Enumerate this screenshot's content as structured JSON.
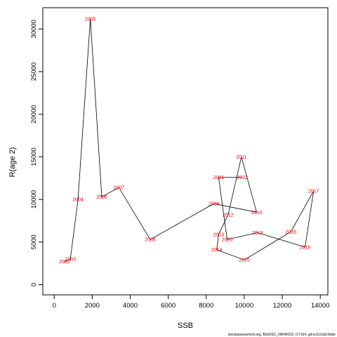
{
  "chart_data": {
    "type": "line",
    "xlabel": "SSB",
    "ylabel": "R(age 2)",
    "xlim": [
      -600,
      14400
    ],
    "ylim": [
      -1200,
      32500
    ],
    "xticks": [
      0,
      2000,
      4000,
      6000,
      8000,
      10000,
      12000,
      14000
    ],
    "yticks": [
      0,
      5000,
      10000,
      15000,
      20000,
      25000,
      30000
    ],
    "line_color": "#000000",
    "label_color": "#ff0000",
    "points": [
      {
        "year": "2002",
        "x": 550,
        "y": 2700
      },
      {
        "year": "2003",
        "x": 850,
        "y": 3000
      },
      {
        "year": "2004",
        "x": 1250,
        "y": 10000
      },
      {
        "year": "2005",
        "x": 1900,
        "y": 31200
      },
      {
        "year": "2006",
        "x": 2500,
        "y": 10300
      },
      {
        "year": "2007",
        "x": 3400,
        "y": 11400
      },
      {
        "year": "2008",
        "x": 5050,
        "y": 5300
      },
      {
        "year": "2009",
        "x": 8400,
        "y": 9500
      },
      {
        "year": "2010",
        "x": 10650,
        "y": 8500
      },
      {
        "year": "2011",
        "x": 9850,
        "y": 15000
      },
      {
        "year": "2012",
        "x": 9150,
        "y": 8200
      },
      {
        "year": "2013",
        "x": 8650,
        "y": 5900
      },
      {
        "year": "2014",
        "x": 8550,
        "y": 4100
      },
      {
        "year": "2015",
        "x": 10000,
        "y": 2900
      },
      {
        "year": "2016",
        "x": 12450,
        "y": 6200
      },
      {
        "year": "2017",
        "x": 13650,
        "y": 11000
      },
      {
        "year": "2018",
        "x": 13200,
        "y": 4400
      },
      {
        "year": "2019",
        "x": 10700,
        "y": 6100
      },
      {
        "year": "2020",
        "x": 9100,
        "y": 5300
      },
      {
        "year": "2021",
        "x": 8650,
        "y": 12600
      },
      {
        "year": "2022",
        "x": 9900,
        "y": 12600
      }
    ]
  },
  "credit": "stockassessment.org, BGlOSC_NWW023, r17164, git:ec2c2a0c6dde"
}
